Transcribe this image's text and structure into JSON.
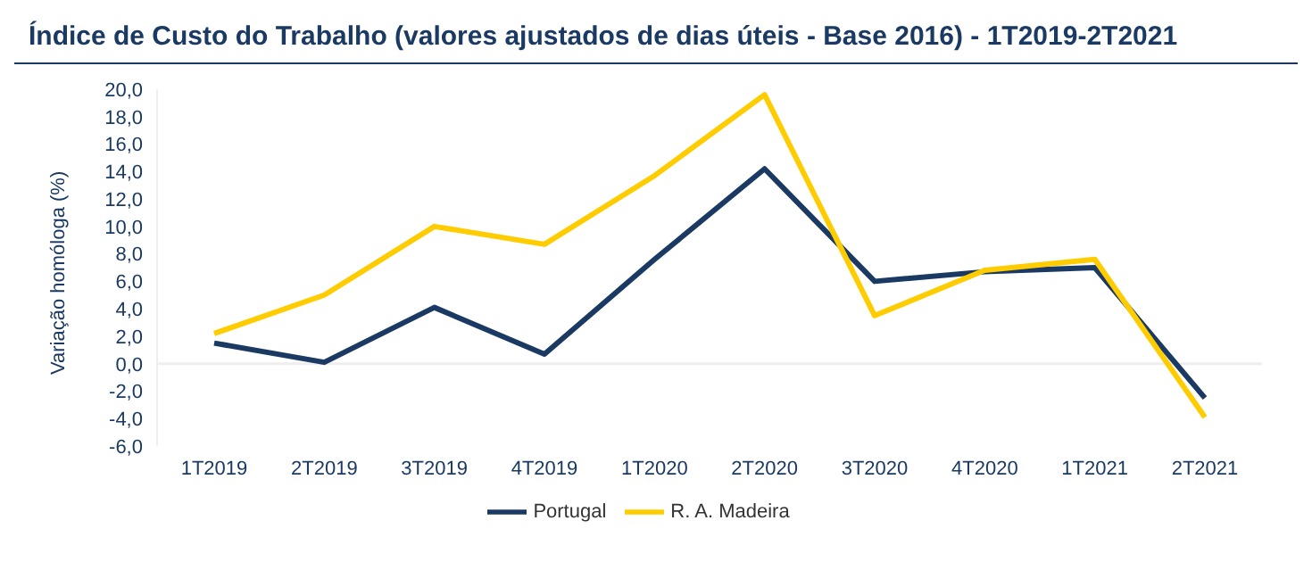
{
  "chart_data": {
    "type": "line",
    "title": "Índice de Custo do Trabalho (valores ajustados de dias úteis - Base 2016) - 1T2019-2T2021",
    "ylabel": "Variação homóloga (%)",
    "categories": [
      "1T2019",
      "2T2019",
      "3T2019",
      "4T2019",
      "1T2020",
      "2T2020",
      "3T2020",
      "4T2020",
      "1T2021",
      "2T2021"
    ],
    "series": [
      {
        "name": "Portugal",
        "color": "#1b3a63",
        "values": [
          1.5,
          0.1,
          4.1,
          0.7,
          7.6,
          14.2,
          6.0,
          6.7,
          7.0,
          -2.5
        ]
      },
      {
        "name": "R. A. Madeira",
        "color": "#ffcc00",
        "values": [
          2.2,
          5.0,
          10.0,
          8.7,
          13.7,
          19.6,
          3.5,
          6.8,
          7.6,
          -3.9
        ]
      }
    ],
    "ylim": [
      -6,
      20
    ],
    "yticks": [
      {
        "value": -6,
        "label": "-6,0"
      },
      {
        "value": -4,
        "label": "-4,0"
      },
      {
        "value": -2,
        "label": "-2,0"
      },
      {
        "value": 0,
        "label": "0,0"
      },
      {
        "value": 2,
        "label": "2,0"
      },
      {
        "value": 4,
        "label": "4,0"
      },
      {
        "value": 6,
        "label": "6,0"
      },
      {
        "value": 8,
        "label": "8,0"
      },
      {
        "value": 10,
        "label": "10,0"
      },
      {
        "value": 12,
        "label": "12,0"
      },
      {
        "value": 14,
        "label": "14,0"
      },
      {
        "value": 16,
        "label": "16,0"
      },
      {
        "value": 18,
        "label": "18,0"
      },
      {
        "value": 20,
        "label": "20,0"
      }
    ],
    "ref_lines": [
      {
        "axis": "y",
        "value": 0,
        "color": "#eeeeee"
      }
    ],
    "grid": false,
    "legend": "bottom",
    "marker": "none",
    "line_style": "solid"
  }
}
